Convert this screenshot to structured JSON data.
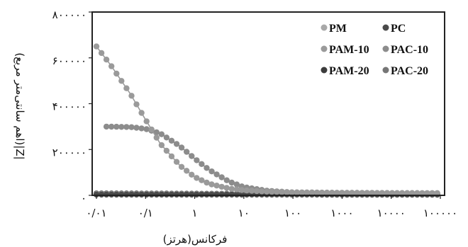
{
  "chart_data": {
    "type": "scatter",
    "title": "",
    "xlabel": "فرکانس(هرتز)",
    "ylabel": "|Z|(اهم سانتی‌متر مربع)",
    "x_scale": "log",
    "xlim": [
      0.01,
      100000
    ],
    "ylim": [
      0,
      800000
    ],
    "x_ticks": [
      {
        "value": 0.01,
        "label": "۰/۰۱"
      },
      {
        "value": 0.1,
        "label": "۰/۱"
      },
      {
        "value": 1,
        "label": "۱"
      },
      {
        "value": 10,
        "label": "۱۰"
      },
      {
        "value": 100,
        "label": "۱۰۰"
      },
      {
        "value": 1000,
        "label": "۱۰۰۰"
      },
      {
        "value": 10000,
        "label": "۱۰۰۰۰"
      },
      {
        "value": 100000,
        "label": "۱۰۰۰۰۰"
      }
    ],
    "y_ticks": [
      {
        "value": 0,
        "label": "۰"
      },
      {
        "value": 200000,
        "label": "۲۰۰۰۰۰"
      },
      {
        "value": 400000,
        "label": "۴۰۰۰۰۰"
      },
      {
        "value": 600000,
        "label": "۶۰۰۰۰۰"
      },
      {
        "value": 800000,
        "label": "۸۰۰۰۰۰"
      }
    ],
    "legend": {
      "placement": "top-right",
      "columns": 2
    },
    "grid": false,
    "series": [
      {
        "name": "PM",
        "color": "#a8a8a8",
        "points": [
          [
            0.01,
            5000
          ],
          [
            0.1,
            5000
          ],
          [
            1,
            4800
          ],
          [
            10,
            4600
          ],
          [
            100,
            4500
          ],
          [
            1000,
            4500
          ],
          [
            10000,
            4400
          ],
          [
            100000,
            4300
          ]
        ]
      },
      {
        "name": "PC",
        "color": "#4a4a4a",
        "points": [
          [
            0.01,
            3500
          ],
          [
            0.1,
            3500
          ],
          [
            1,
            3400
          ],
          [
            10,
            3300
          ],
          [
            100,
            3300
          ],
          [
            1000,
            3200
          ],
          [
            10000,
            3200
          ],
          [
            100000,
            3100
          ]
        ]
      },
      {
        "name": "PAM-10",
        "color": "#9a9a9a",
        "points": [
          [
            0.01,
            650000
          ],
          [
            0.02,
            565000
          ],
          [
            0.05,
            440000
          ],
          [
            0.1,
            330000
          ],
          [
            0.2,
            225000
          ],
          [
            0.5,
            130000
          ],
          [
            1,
            80000
          ],
          [
            2,
            50000
          ],
          [
            5,
            30000
          ],
          [
            10,
            22000
          ],
          [
            30,
            16000
          ],
          [
            100,
            13000
          ],
          [
            1000,
            11000
          ],
          [
            10000,
            10000
          ],
          [
            100000,
            9500
          ]
        ]
      },
      {
        "name": "PAC-10",
        "color": "#8c8c8c",
        "points": [
          [
            0.016,
            300000
          ],
          [
            0.05,
            298000
          ],
          [
            0.1,
            290000
          ],
          [
            0.2,
            270000
          ],
          [
            0.5,
            215000
          ],
          [
            1,
            160000
          ],
          [
            2,
            110000
          ],
          [
            5,
            60000
          ],
          [
            10,
            36000
          ],
          [
            30,
            20000
          ],
          [
            100,
            13000
          ],
          [
            1000,
            11000
          ],
          [
            10000,
            10000
          ],
          [
            100000,
            9500
          ]
        ]
      },
      {
        "name": "PAM-20",
        "color": "#3c3c3c",
        "points": [
          [
            0.01,
            8000
          ],
          [
            0.1,
            7500
          ],
          [
            1,
            7000
          ],
          [
            10,
            6500
          ],
          [
            100,
            6200
          ],
          [
            1000,
            6000
          ],
          [
            10000,
            5800
          ],
          [
            100000,
            5500
          ]
        ]
      },
      {
        "name": "PAC-20",
        "color": "#767676",
        "points": [
          [
            0.01,
            6000
          ],
          [
            0.1,
            5800
          ],
          [
            1,
            5600
          ],
          [
            10,
            5400
          ],
          [
            100,
            5200
          ],
          [
            1000,
            5100
          ],
          [
            10000,
            5000
          ],
          [
            100000,
            4900
          ]
        ]
      }
    ]
  }
}
